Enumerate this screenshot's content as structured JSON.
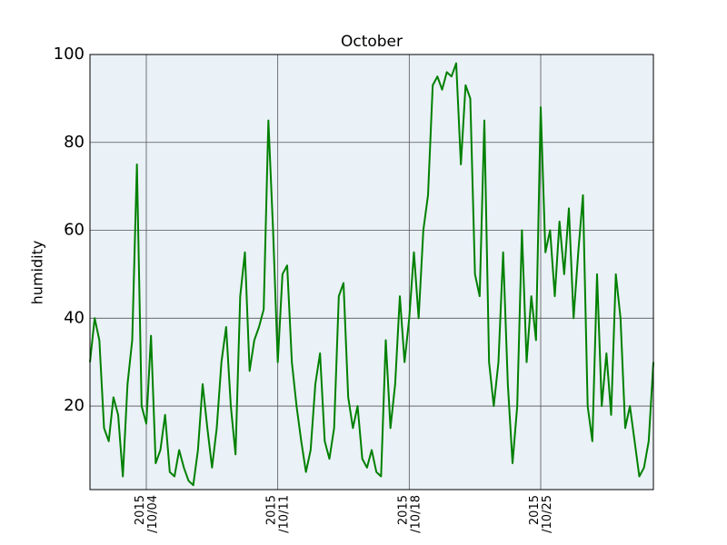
{
  "chart_data": {
    "type": "line",
    "title": "October",
    "ylabel": "humidity",
    "x": [
      1,
      1.25,
      1.5,
      1.75,
      2,
      2.25,
      2.5,
      2.75,
      3,
      3.25,
      3.5,
      3.75,
      4,
      4.25,
      4.5,
      4.75,
      5,
      5.25,
      5.5,
      5.75,
      6,
      6.25,
      6.5,
      6.75,
      7,
      7.25,
      7.5,
      7.75,
      8,
      8.25,
      8.5,
      8.75,
      9,
      9.25,
      9.5,
      9.75,
      10,
      10.25,
      10.5,
      10.75,
      11,
      11.25,
      11.5,
      11.75,
      12,
      12.25,
      12.5,
      12.75,
      13,
      13.25,
      13.5,
      13.75,
      14,
      14.25,
      14.5,
      14.75,
      15,
      15.25,
      15.5,
      15.75,
      16,
      16.25,
      16.5,
      16.75,
      17,
      17.25,
      17.5,
      17.75,
      18,
      18.25,
      18.5,
      18.75,
      19,
      19.25,
      19.5,
      19.75,
      20,
      20.25,
      20.5,
      20.75,
      21,
      21.25,
      21.5,
      21.75,
      22,
      22.25,
      22.5,
      22.75,
      23,
      23.25,
      23.5,
      23.75,
      24,
      24.25,
      24.5,
      24.75,
      25,
      25.25,
      25.5,
      25.75,
      26,
      26.25,
      26.5,
      26.75,
      27,
      27.25,
      27.5,
      27.75,
      28,
      28.25,
      28.5,
      28.75,
      29,
      29.25,
      29.5,
      29.75,
      30,
      30.25,
      30.5,
      30.75,
      31
    ],
    "values": [
      30,
      40,
      35,
      15,
      12,
      22,
      18,
      4,
      25,
      35,
      75,
      20,
      16,
      36,
      7,
      10,
      18,
      5,
      4,
      10,
      6,
      3,
      2,
      10,
      25,
      15,
      6,
      15,
      30,
      38,
      20,
      9,
      45,
      55,
      28,
      35,
      38,
      42,
      85,
      60,
      30,
      50,
      52,
      30,
      20,
      12,
      5,
      10,
      25,
      32,
      12,
      8,
      15,
      45,
      48,
      22,
      15,
      20,
      8,
      6,
      10,
      5,
      4,
      35,
      15,
      25,
      45,
      30,
      40,
      55,
      40,
      60,
      68,
      93,
      95,
      92,
      96,
      95,
      98,
      75,
      93,
      90,
      50,
      45,
      85,
      30,
      20,
      30,
      55,
      25,
      7,
      20,
      60,
      30,
      45,
      35,
      88,
      55,
      60,
      45,
      62,
      50,
      65,
      40,
      55,
      68,
      20,
      12,
      50,
      20,
      32,
      18,
      50,
      40,
      15,
      20,
      12,
      4,
      6,
      12,
      30
    ],
    "color": "#008000",
    "xlim": [
      1,
      31
    ],
    "xticks": [
      {
        "value": 4,
        "label": "2015\n/10/04"
      },
      {
        "value": 11,
        "label": "2015\n/10/11"
      },
      {
        "value": 18,
        "label": "2015\n/10/18"
      },
      {
        "value": 25,
        "label": "2015\n/10/25"
      }
    ],
    "ylim": [
      1,
      100
    ],
    "yticks": [
      20,
      40,
      60,
      80,
      100
    ],
    "grid": true
  }
}
